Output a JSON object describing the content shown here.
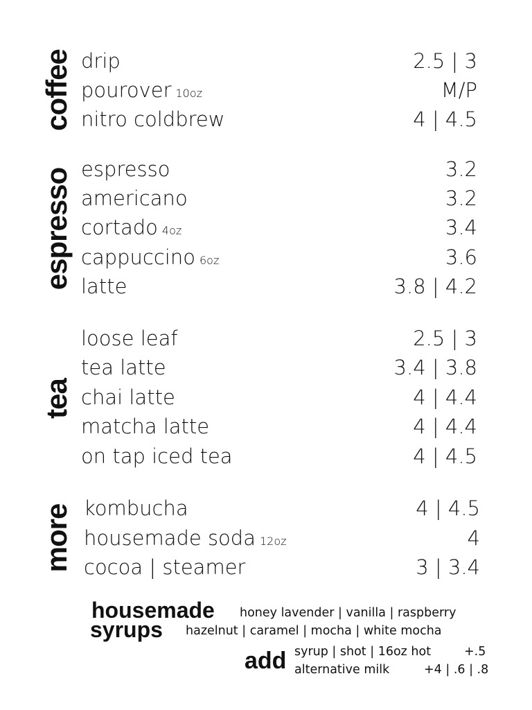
{
  "sections": [
    {
      "title": "coffee",
      "items": [
        {
          "name": "drip",
          "size": "",
          "price": "2.5 | 3"
        },
        {
          "name": "pourover",
          "size": "10oz",
          "price": "M/P"
        },
        {
          "name": "nitro coldbrew",
          "size": "",
          "price": "4 | 4.5"
        }
      ]
    },
    {
      "title": "espresso",
      "items": [
        {
          "name": "espresso",
          "size": "",
          "price": "3.2"
        },
        {
          "name": "americano",
          "size": "",
          "price": "3.2"
        },
        {
          "name": "cortado",
          "size": "4oz",
          "price": "3.4"
        },
        {
          "name": "cappuccino",
          "size": "6oz",
          "price": "3.6"
        },
        {
          "name": "latte",
          "size": "",
          "price": "3.8 | 4.2"
        }
      ]
    },
    {
      "title": "tea",
      "items": [
        {
          "name": "loose leaf",
          "size": "",
          "price": "2.5 | 3"
        },
        {
          "name": "tea latte",
          "size": "",
          "price": "3.4 | 3.8"
        },
        {
          "name": "chai latte",
          "size": "",
          "price": "4 | 4.4"
        },
        {
          "name": "matcha latte",
          "size": "",
          "price": "4 | 4.4"
        },
        {
          "name": "on tap iced tea",
          "size": "",
          "price": "4 | 4.5"
        }
      ]
    },
    {
      "title": "more",
      "items": [
        {
          "name": "kombucha",
          "size": "",
          "price": "4 | 4.5"
        },
        {
          "name": "housemade soda",
          "size": "12oz",
          "price": "4"
        },
        {
          "name": "cocoa | steamer",
          "size": "",
          "price": "3 | 3.4"
        }
      ]
    }
  ],
  "syrups": {
    "title_line1": "housemade",
    "title_line2": "syrups",
    "line1": "honey lavender | vanilla | raspberry",
    "line2": "hazelnut | caramel | mocha | white mocha"
  },
  "add": {
    "title": "add",
    "line1_label": "syrup | shot | 16oz hot",
    "line1_price": "+.5",
    "line2_label": "alternative milk",
    "line2_price": "+4 | .6 | .8"
  }
}
